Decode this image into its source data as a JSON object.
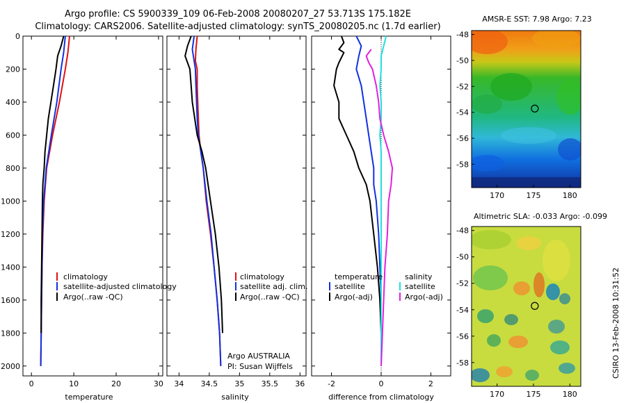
{
  "title_line1": "Argo profile: CS 5900339_109 06-Feb-2008 20080207_27 53.713S 175.182E",
  "title_line2": "Climatology: CARS2006. Satellite-adjusted climatology: synTS_20080205.nc (1.7d earlier)",
  "credit": "CSIRO 13-Feb-2008 10:31:52",
  "chart_data": [
    {
      "id": "temperature",
      "type": "line",
      "xlabel": "temperature",
      "xlim": [
        -2,
        31
      ],
      "ylim": [
        0,
        2060
      ],
      "y_reversed": true,
      "xticks": [
        0,
        10,
        20,
        30
      ],
      "yticks": [
        0,
        200,
        400,
        600,
        800,
        1000,
        1200,
        1400,
        1600,
        1800,
        2000
      ],
      "legend": [
        "climatology",
        "satellite-adjusted climatology",
        "Argo(..raw -QC)"
      ],
      "series": [
        {
          "name": "climatology",
          "color": "#e01010",
          "points": [
            [
              9.0,
              0
            ],
            [
              8.6,
              100
            ],
            [
              8.0,
              200
            ],
            [
              6.6,
              400
            ],
            [
              5.0,
              600
            ],
            [
              3.6,
              800
            ],
            [
              3.0,
              1000
            ],
            [
              2.7,
              1200
            ],
            [
              2.5,
              1400
            ],
            [
              2.4,
              1600
            ],
            [
              2.3,
              1800
            ],
            [
              2.2,
              2000
            ]
          ]
        },
        {
          "name": "satellite-adjusted climatology",
          "color": "#1030e0",
          "points": [
            [
              8.0,
              0
            ],
            [
              7.6,
              100
            ],
            [
              7.0,
              200
            ],
            [
              6.0,
              400
            ],
            [
              4.7,
              600
            ],
            [
              3.5,
              800
            ],
            [
              2.9,
              1000
            ],
            [
              2.6,
              1200
            ],
            [
              2.5,
              1400
            ],
            [
              2.4,
              1600
            ],
            [
              2.3,
              1800
            ],
            [
              2.2,
              2000
            ]
          ]
        },
        {
          "name": "Argo(..raw -QC)",
          "color": "#000000",
          "points": [
            [
              7.6,
              0
            ],
            [
              7.0,
              60
            ],
            [
              6.2,
              120
            ],
            [
              5.8,
              200
            ],
            [
              5.2,
              300
            ],
            [
              4.6,
              400
            ],
            [
              4.0,
              500
            ],
            [
              3.6,
              600
            ],
            [
              3.2,
              700
            ],
            [
              3.0,
              800
            ],
            [
              2.7,
              900
            ],
            [
              2.6,
              1000
            ],
            [
              2.5,
              1200
            ],
            [
              2.4,
              1400
            ],
            [
              2.3,
              1600
            ],
            [
              2.3,
              1800
            ]
          ]
        }
      ]
    },
    {
      "id": "salinity",
      "type": "line",
      "xlabel": "salinity",
      "xlim": [
        33.8,
        36.1
      ],
      "ylim": [
        0,
        2060
      ],
      "y_reversed": true,
      "xticks": [
        34,
        34.5,
        35,
        35.5,
        36
      ],
      "legend": [
        "climatology",
        "satellite adj. clim.",
        "Argo(..raw -QC)"
      ],
      "annotation": [
        "Argo AUSTRALIA",
        "PI: Susan Wijffels"
      ],
      "series": [
        {
          "name": "climatology",
          "color": "#e01010",
          "points": [
            [
              34.3,
              0
            ],
            [
              34.28,
              80
            ],
            [
              34.27,
              150
            ],
            [
              34.3,
              200
            ],
            [
              34.3,
              300
            ],
            [
              34.31,
              400
            ],
            [
              34.32,
              500
            ],
            [
              34.33,
              600
            ],
            [
              34.36,
              700
            ],
            [
              34.4,
              800
            ],
            [
              34.45,
              1000
            ],
            [
              34.52,
              1200
            ],
            [
              34.58,
              1400
            ],
            [
              34.63,
              1600
            ],
            [
              34.67,
              1800
            ],
            [
              34.69,
              2000
            ]
          ]
        },
        {
          "name": "satellite adj. clim.",
          "color": "#1030e0",
          "points": [
            [
              34.25,
              0
            ],
            [
              34.22,
              80
            ],
            [
              34.25,
              150
            ],
            [
              34.27,
              200
            ],
            [
              34.28,
              300
            ],
            [
              34.29,
              400
            ],
            [
              34.3,
              500
            ],
            [
              34.32,
              600
            ],
            [
              34.36,
              700
            ],
            [
              34.4,
              800
            ],
            [
              34.46,
              1000
            ],
            [
              34.53,
              1200
            ],
            [
              34.58,
              1400
            ],
            [
              34.63,
              1600
            ],
            [
              34.67,
              1800
            ],
            [
              34.69,
              2000
            ]
          ]
        },
        {
          "name": "Argo(..raw -QC)",
          "color": "#000000",
          "points": [
            [
              34.2,
              0
            ],
            [
              34.14,
              60
            ],
            [
              34.1,
              120
            ],
            [
              34.18,
              200
            ],
            [
              34.2,
              300
            ],
            [
              34.22,
              400
            ],
            [
              34.26,
              500
            ],
            [
              34.3,
              600
            ],
            [
              34.38,
              700
            ],
            [
              34.44,
              800
            ],
            [
              34.52,
              1000
            ],
            [
              34.6,
              1200
            ],
            [
              34.66,
              1400
            ],
            [
              34.7,
              1600
            ],
            [
              34.72,
              1800
            ]
          ]
        }
      ]
    },
    {
      "id": "difference",
      "type": "line",
      "xlabel": "difference from climatology",
      "xlim": [
        -2.8,
        2.8
      ],
      "ylim": [
        0,
        2060
      ],
      "y_reversed": true,
      "xticks": [
        -2,
        0,
        2
      ],
      "legend_left_title": "temperature",
      "legend_right_title": "salinity",
      "legend": [
        "satellite",
        "Argo(-adj)",
        "satellite",
        "Argo(-adj)"
      ],
      "series": [
        {
          "name": "satellite",
          "group": "temperature",
          "color": "#1030e0",
          "points": [
            [
              -1.0,
              0
            ],
            [
              -0.8,
              60
            ],
            [
              -0.9,
              120
            ],
            [
              -1.0,
              200
            ],
            [
              -0.8,
              300
            ],
            [
              -0.7,
              400
            ],
            [
              -0.6,
              500
            ],
            [
              -0.5,
              600
            ],
            [
              -0.4,
              700
            ],
            [
              -0.3,
              800
            ],
            [
              -0.3,
              900
            ],
            [
              -0.2,
              1000
            ],
            [
              -0.1,
              1200
            ],
            [
              -0.05,
              1400
            ],
            [
              0,
              1600
            ],
            [
              0,
              1800
            ],
            [
              0,
              2000
            ]
          ]
        },
        {
          "name": "Argo(-adj)",
          "group": "temperature",
          "color": "#000000",
          "points": [
            [
              -1.6,
              0
            ],
            [
              -1.5,
              40
            ],
            [
              -1.7,
              80
            ],
            [
              -1.5,
              100
            ],
            [
              -1.7,
              160
            ],
            [
              -1.8,
              200
            ],
            [
              -1.9,
              300
            ],
            [
              -1.7,
              400
            ],
            [
              -1.7,
              500
            ],
            [
              -1.4,
              600
            ],
            [
              -1.1,
              700
            ],
            [
              -0.9,
              800
            ],
            [
              -0.6,
              900
            ],
            [
              -0.45,
              1000
            ],
            [
              -0.3,
              1200
            ],
            [
              -0.15,
              1400
            ],
            [
              -0.05,
              1600
            ],
            [
              0,
              1800
            ],
            [
              0,
              2000
            ]
          ]
        },
        {
          "name": "satellite",
          "group": "salinity",
          "color": "#20e0e0",
          "points": [
            [
              0.2,
              0
            ],
            [
              0.1,
              60
            ],
            [
              0,
              120
            ],
            [
              0,
              200
            ],
            [
              -0.05,
              300
            ],
            [
              0,
              400
            ],
            [
              0,
              500
            ],
            [
              -0.05,
              600
            ],
            [
              0,
              700
            ],
            [
              0,
              800
            ],
            [
              0,
              1000
            ],
            [
              0,
              1200
            ],
            [
              0,
              1400
            ],
            [
              0,
              1600
            ],
            [
              0,
              1800
            ],
            [
              0,
              2000
            ]
          ]
        },
        {
          "name": "Argo(-adj)",
          "group": "salinity",
          "color": "#e020e0",
          "points": [
            [
              -0.4,
              80
            ],
            [
              -0.6,
              120
            ],
            [
              -0.5,
              160
            ],
            [
              -0.35,
              200
            ],
            [
              -0.2,
              300
            ],
            [
              -0.1,
              400
            ],
            [
              -0.05,
              500
            ],
            [
              0.1,
              600
            ],
            [
              0.3,
              700
            ],
            [
              0.45,
              800
            ],
            [
              0.4,
              900
            ],
            [
              0.3,
              1000
            ],
            [
              0.25,
              1200
            ],
            [
              0.15,
              1400
            ],
            [
              0.1,
              1600
            ],
            [
              0.05,
              1800
            ],
            [
              0,
              2000
            ]
          ]
        }
      ]
    },
    {
      "id": "sst_map",
      "type": "heatmap",
      "title": "AMSR-E SST: 7.98 Argo: 7.23",
      "xlim": [
        166.5,
        181.5
      ],
      "ylim": [
        -59.8,
        -47.7
      ],
      "xticks": [
        170,
        175,
        180
      ],
      "yticks": [
        -48,
        -50,
        -52,
        -54,
        -56,
        -58
      ],
      "argo_position": [
        175.18,
        -53.71
      ]
    },
    {
      "id": "sla_map",
      "type": "heatmap",
      "title": "Altimetric SLA: -0.033 Argo: -0.099",
      "xlim": [
        166.5,
        181.5
      ],
      "ylim": [
        -59.8,
        -47.7
      ],
      "xticks": [
        170,
        175,
        180
      ],
      "yticks": [
        -48,
        -50,
        -52,
        -54,
        -56,
        -58
      ],
      "argo_position": [
        175.18,
        -53.71
      ]
    }
  ]
}
